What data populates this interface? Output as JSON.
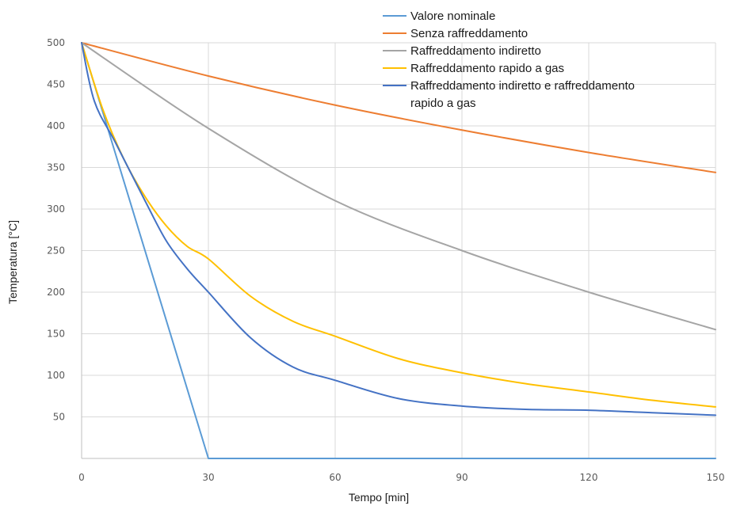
{
  "chart_data": {
    "type": "line",
    "title": "",
    "xlabel": "Tempo [min]",
    "ylabel": "Temperatura [°C]",
    "xlim": [
      0,
      150
    ],
    "ylim": [
      0,
      500
    ],
    "x_ticks": [
      0,
      30,
      60,
      90,
      120,
      150
    ],
    "y_ticks": [
      50,
      100,
      150,
      200,
      250,
      300,
      350,
      400,
      450,
      500
    ],
    "grid": true,
    "legend_position": "top-right",
    "series": [
      {
        "name": "Valore nominale",
        "color": "#5b9bd5",
        "points": [
          [
            0,
            500
          ],
          [
            30,
            0
          ],
          [
            150,
            0
          ]
        ]
      },
      {
        "name": "Senza raffreddamento",
        "color": "#ed7d31",
        "points": [
          [
            0,
            500
          ],
          [
            30,
            460
          ],
          [
            60,
            425
          ],
          [
            90,
            395
          ],
          [
            120,
            368
          ],
          [
            150,
            344
          ]
        ]
      },
      {
        "name": "Raffreddamento indiretto",
        "color": "#a5a5a5",
        "points": [
          [
            0,
            500
          ],
          [
            30,
            397
          ],
          [
            60,
            310
          ],
          [
            90,
            250
          ],
          [
            120,
            200
          ],
          [
            150,
            155
          ]
        ]
      },
      {
        "name": "Raffreddamento rapido a gas",
        "color": "#ffc000",
        "points": [
          [
            0,
            500
          ],
          [
            5,
            420
          ],
          [
            10,
            360
          ],
          [
            15,
            315
          ],
          [
            20,
            280
          ],
          [
            25,
            255
          ],
          [
            30,
            240
          ],
          [
            40,
            195
          ],
          [
            50,
            165
          ],
          [
            60,
            147
          ],
          [
            75,
            120
          ],
          [
            90,
            103
          ],
          [
            105,
            90
          ],
          [
            120,
            80
          ],
          [
            135,
            70
          ],
          [
            150,
            62
          ]
        ]
      },
      {
        "name": "Raffreddamento indiretto e raffreddamento rapido a gas",
        "color": "#4472c4",
        "points": [
          [
            0,
            500
          ],
          [
            3,
            430
          ],
          [
            8,
            380
          ],
          [
            15,
            310
          ],
          [
            20,
            262
          ],
          [
            25,
            228
          ],
          [
            30,
            200
          ],
          [
            40,
            145
          ],
          [
            50,
            110
          ],
          [
            60,
            94
          ],
          [
            75,
            72
          ],
          [
            90,
            63
          ],
          [
            105,
            59
          ],
          [
            120,
            58
          ],
          [
            135,
            55
          ],
          [
            150,
            52
          ]
        ]
      }
    ]
  }
}
